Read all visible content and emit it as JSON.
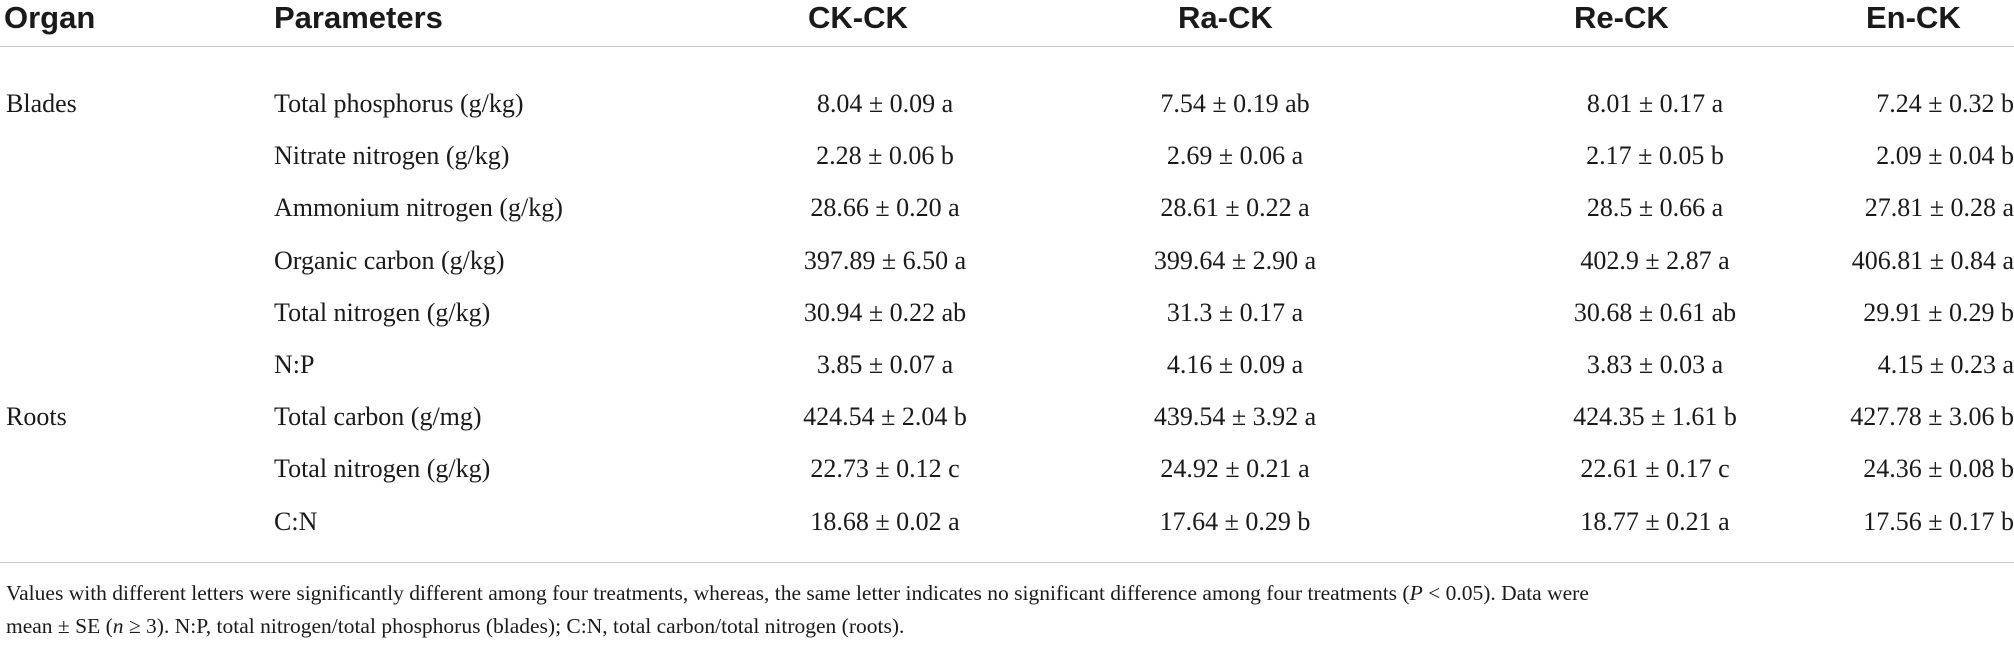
{
  "table": {
    "headers": {
      "organ": "Organ",
      "parameters": "Parameters",
      "col1": "CK-CK",
      "col2": "Ra-CK",
      "col3": "Re-CK",
      "col4": "En-CK"
    },
    "rows": [
      {
        "organ": "Blades",
        "parameter": "Total phosphorus (g/kg)",
        "values": [
          "8.04 ± 0.09 a",
          "7.54 ± 0.19 ab",
          "8.01 ± 0.17 a",
          "7.24 ± 0.32 b"
        ]
      },
      {
        "organ": "",
        "parameter": "Nitrate nitrogen (g/kg)",
        "values": [
          "2.28 ± 0.06 b",
          "2.69 ± 0.06 a",
          "2.17 ± 0.05 b",
          "2.09 ± 0.04 b"
        ]
      },
      {
        "organ": "",
        "parameter": "Ammonium nitrogen (g/kg)",
        "values": [
          "28.66 ± 0.20 a",
          "28.61 ± 0.22 a",
          "28.5 ± 0.66 a",
          "27.81 ± 0.28 a"
        ]
      },
      {
        "organ": "",
        "parameter": "Organic carbon (g/kg)",
        "values": [
          "397.89 ± 6.50 a",
          "399.64 ± 2.90 a",
          "402.9 ± 2.87 a",
          "406.81 ± 0.84 a"
        ]
      },
      {
        "organ": "",
        "parameter": "Total nitrogen (g/kg)",
        "values": [
          "30.94 ± 0.22 ab",
          "31.3 ± 0.17 a",
          "30.68 ± 0.61 ab",
          "29.91 ± 0.29 b"
        ]
      },
      {
        "organ": "",
        "parameter": "N:P",
        "values": [
          "3.85 ± 0.07 a",
          "4.16 ± 0.09 a",
          "3.83 ± 0.03 a",
          "4.15 ± 0.23 a"
        ]
      },
      {
        "organ": "Roots",
        "parameter": "Total carbon (g/mg)",
        "values": [
          "424.54 ± 2.04 b",
          "439.54 ± 3.92 a",
          "424.35 ± 1.61 b",
          "427.78 ± 3.06 b"
        ]
      },
      {
        "organ": "",
        "parameter": "Total nitrogen (g/kg)",
        "values": [
          "22.73 ± 0.12 c",
          "24.92 ± 0.21 a",
          "22.61 ± 0.17 c",
          "24.36 ± 0.08 b"
        ]
      },
      {
        "organ": "",
        "parameter": "C:N",
        "values": [
          "18.68 ± 0.02 a",
          "17.64 ± 0.29 b",
          "18.77 ± 0.21 a",
          "17.56 ± 0.17 b"
        ]
      }
    ]
  },
  "footnote": {
    "line1_text": "Values with different letters were significantly different among four treatments, whereas, the same letter indicates no significant difference among four treatments (",
    "line1_var": "P",
    "line1_end": " < 0.05). Data were",
    "line2_start": "mean ± SE (",
    "line2_var": "n",
    "line2_end": " ≥ 3). N:P, total nitrogen/total phosphorus (blades); C:N, total carbon/total nitrogen (roots)."
  },
  "colors": {
    "rule": "#c8c8c8",
    "text": "#1a1a1a"
  }
}
